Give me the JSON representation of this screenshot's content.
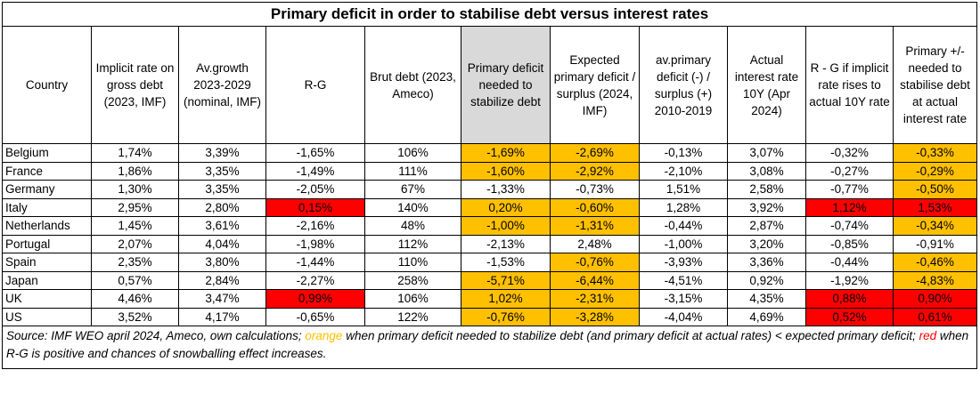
{
  "title": "Primary deficit in order to stabilise debt versus interest rates",
  "headers": [
    "Country",
    "Implicit rate on gross debt (2023, IMF)",
    "Av.growth 2023-2029 (nominal, IMF)",
    "R-G",
    "Brut debt (2023, Ameco)",
    "Primary deficit needed to stabilize debt",
    "Expected primary deficit / surplus (2024, IMF)",
    "av.primary deficit (-) / surplus (+) 2010-2019",
    "Actual interest rate 10Y (Apr 2024)",
    "R - G if implicit rate rises to actual 10Y rate",
    "Primary +/- needed to stabilise debt at actual interest rate"
  ],
  "colors": {
    "orange": "#ffc000",
    "red": "#ff0000",
    "header_grey": "#d9d9d9"
  },
  "chart_data": {
    "type": "table",
    "title": "Primary deficit in order to stabilise debt versus interest rates",
    "rows": [
      {
        "cells": [
          "Belgium",
          "1,74%",
          "3,39%",
          "-1,65%",
          "106%",
          "-1,69%",
          "-2,69%",
          "-0,13%",
          "3,07%",
          "-0,32%",
          "-0,33%"
        ],
        "fills": [
          "",
          "",
          "",
          "",
          "",
          "orange",
          "orange",
          "",
          "",
          "",
          "orange"
        ]
      },
      {
        "cells": [
          "France",
          "1,86%",
          "3,35%",
          "-1,49%",
          "111%",
          "-1,60%",
          "-2,92%",
          "-2,10%",
          "3,08%",
          "-0,27%",
          "-0,29%"
        ],
        "fills": [
          "",
          "",
          "",
          "",
          "",
          "orange",
          "orange",
          "",
          "",
          "",
          "orange"
        ]
      },
      {
        "cells": [
          "Germany",
          "1,30%",
          "3,35%",
          "-2,05%",
          "67%",
          "-1,33%",
          "-0,73%",
          "1,51%",
          "2,58%",
          "-0,77%",
          "-0,50%"
        ],
        "fills": [
          "",
          "",
          "",
          "",
          "",
          "",
          "",
          "",
          "",
          "",
          "orange"
        ]
      },
      {
        "cells": [
          "Italy",
          "2,95%",
          "2,80%",
          "0,15%",
          "140%",
          "0,20%",
          "-0,60%",
          "1,28%",
          "3,92%",
          "1,12%",
          "1,53%"
        ],
        "fills": [
          "",
          "",
          "",
          "red",
          "",
          "orange",
          "orange",
          "",
          "",
          "red",
          "red"
        ]
      },
      {
        "cells": [
          "Netherlands",
          "1,45%",
          "3,61%",
          "-2,16%",
          "48%",
          "-1,00%",
          "-1,31%",
          "-0,44%",
          "2,87%",
          "-0,74%",
          "-0,34%"
        ],
        "fills": [
          "",
          "",
          "",
          "",
          "",
          "orange",
          "orange",
          "",
          "",
          "",
          "orange"
        ]
      },
      {
        "cells": [
          "Portugal",
          "2,07%",
          "4,04%",
          "-1,98%",
          "112%",
          "-2,13%",
          "2,48%",
          "-1,00%",
          "3,20%",
          "-0,85%",
          "-0,91%"
        ],
        "fills": [
          "",
          "",
          "",
          "",
          "",
          "",
          "",
          "",
          "",
          "",
          ""
        ]
      },
      {
        "cells": [
          "Spain",
          "2,35%",
          "3,80%",
          "-1,44%",
          "110%",
          "-1,53%",
          "-0,76%",
          "-3,93%",
          "3,36%",
          "-0,44%",
          "-0,46%"
        ],
        "fills": [
          "",
          "",
          "",
          "",
          "",
          "",
          "orange",
          "",
          "",
          "",
          "orange"
        ]
      },
      {
        "cells": [
          "Japan",
          "0,57%",
          "2,84%",
          "-2,27%",
          "258%",
          "-5,71%",
          "-6,44%",
          "-4,51%",
          "0,92%",
          "-1,92%",
          "-4,83%"
        ],
        "fills": [
          "",
          "",
          "",
          "",
          "",
          "orange",
          "orange",
          "",
          "",
          "",
          "orange"
        ]
      },
      {
        "cells": [
          "UK",
          "4,46%",
          "3,47%",
          "0,99%",
          "106%",
          "1,02%",
          "-2,31%",
          "-3,15%",
          "4,35%",
          "0,88%",
          "0,90%"
        ],
        "fills": [
          "",
          "",
          "",
          "red",
          "",
          "orange",
          "orange",
          "",
          "",
          "red",
          "red"
        ]
      },
      {
        "cells": [
          "US",
          "3,52%",
          "4,17%",
          "-0,65%",
          "122%",
          "-0,76%",
          "-3,28%",
          "-4,04%",
          "4,69%",
          "0,52%",
          "0,61%"
        ],
        "fills": [
          "",
          "",
          "",
          "",
          "",
          "orange",
          "orange",
          "",
          "",
          "red",
          "red"
        ]
      }
    ]
  },
  "source": {
    "prefix": "Source: IMF WEO april 2024, Ameco, own calculations; ",
    "orange_word": "orange",
    "orange_text": "  when primary deficit needed to stabilize debt (and primary deficit at actual rates) < expected primary deficit; ",
    "red_word": "red",
    "red_text": "  when R-G is positive and chances of snowballing effect increases."
  }
}
